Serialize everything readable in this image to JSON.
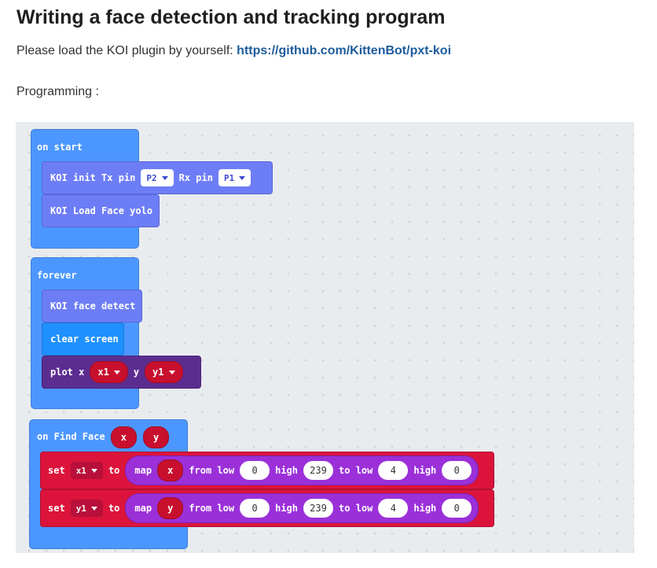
{
  "page": {
    "title": "Writing a face detection and tracking program",
    "intro_text": "Please load the KOI plugin by yourself:",
    "intro_link": "https://github.com/KittenBot/pxt-koi",
    "programming_label": "Programming :"
  },
  "blocks": {
    "on_start": {
      "label": "on start",
      "koi_init": {
        "text1": "KOI init Tx pin",
        "tx": "P2",
        "text2": "Rx pin",
        "rx": "P1"
      },
      "koi_load": "KOI Load Face yolo"
    },
    "forever": {
      "label": "forever",
      "face_detect": "KOI face detect",
      "clear_screen": "clear screen",
      "plot": {
        "text": "plot x",
        "x_var": "x1",
        "y_label": "y",
        "y_var": "y1"
      }
    },
    "on_find_face": {
      "label": "on Find Face",
      "param_x": "x",
      "param_y": "y",
      "rows": [
        {
          "set": "set",
          "var": "x1",
          "to": "to",
          "map": "map",
          "arg": "x",
          "from_low": "from low",
          "v_from_low": "0",
          "high": "high",
          "v_from_high": "239",
          "to_low": "to low",
          "v_to_low": "4",
          "high2": "high",
          "v_to_high": "0"
        },
        {
          "set": "set",
          "var": "y1",
          "to": "to",
          "map": "map",
          "arg": "y",
          "from_low": "from low",
          "v_from_low": "0",
          "high": "high",
          "v_from_high": "239",
          "to_low": "to low",
          "v_to_low": "4",
          "high2": "high",
          "v_to_high": "0"
        }
      ]
    }
  },
  "colors": {
    "event": "#4c97ff",
    "koi": "#6d7df5",
    "basic": "#1e90ff",
    "led": "#5c2d91",
    "variables": "#dc143c",
    "math": "#9b30d9"
  }
}
